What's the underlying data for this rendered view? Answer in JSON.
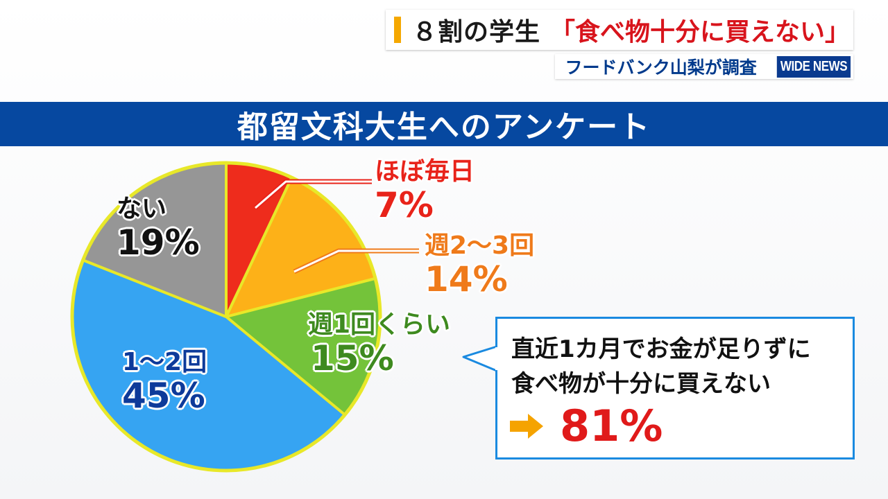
{
  "headline": {
    "main": "８割の学生",
    "quote": "「食べ物十分に買えない」"
  },
  "subline": {
    "text": "フードバンク山梨が調査",
    "logo": "WIDE NEWS"
  },
  "band": {
    "title": "都留文科大生へのアンケート"
  },
  "chart_data": {
    "type": "pie",
    "title": "都留文科大生へのアンケート",
    "slices": [
      {
        "label": "ほぼ毎日",
        "value": 7,
        "display": "7%",
        "color": "#ee2c1c",
        "text_color": "#e8231a"
      },
      {
        "label": "週2～3回",
        "value": 14,
        "display": "14%",
        "color": "#fdb118",
        "text_color": "#ef7a1a"
      },
      {
        "label": "週1回くらい",
        "value": 15,
        "display": "15%",
        "color": "#74c33a",
        "text_color": "#3e8a1f"
      },
      {
        "label": "1～2回",
        "value": 45,
        "display": "45%",
        "color": "#36a4f2",
        "text_color": "#0d3a9a"
      },
      {
        "label": "ない",
        "value": 19,
        "display": "19%",
        "color": "#969696",
        "text_color": "#111111"
      }
    ],
    "border_color": "#e8e829"
  },
  "callout": {
    "line1": "直近1カ月でお金が足りずに",
    "line2": "食べ物が十分に買えない",
    "value": "81%",
    "border_color": "#1a8ae0",
    "arrow_color": "#f5a300"
  }
}
